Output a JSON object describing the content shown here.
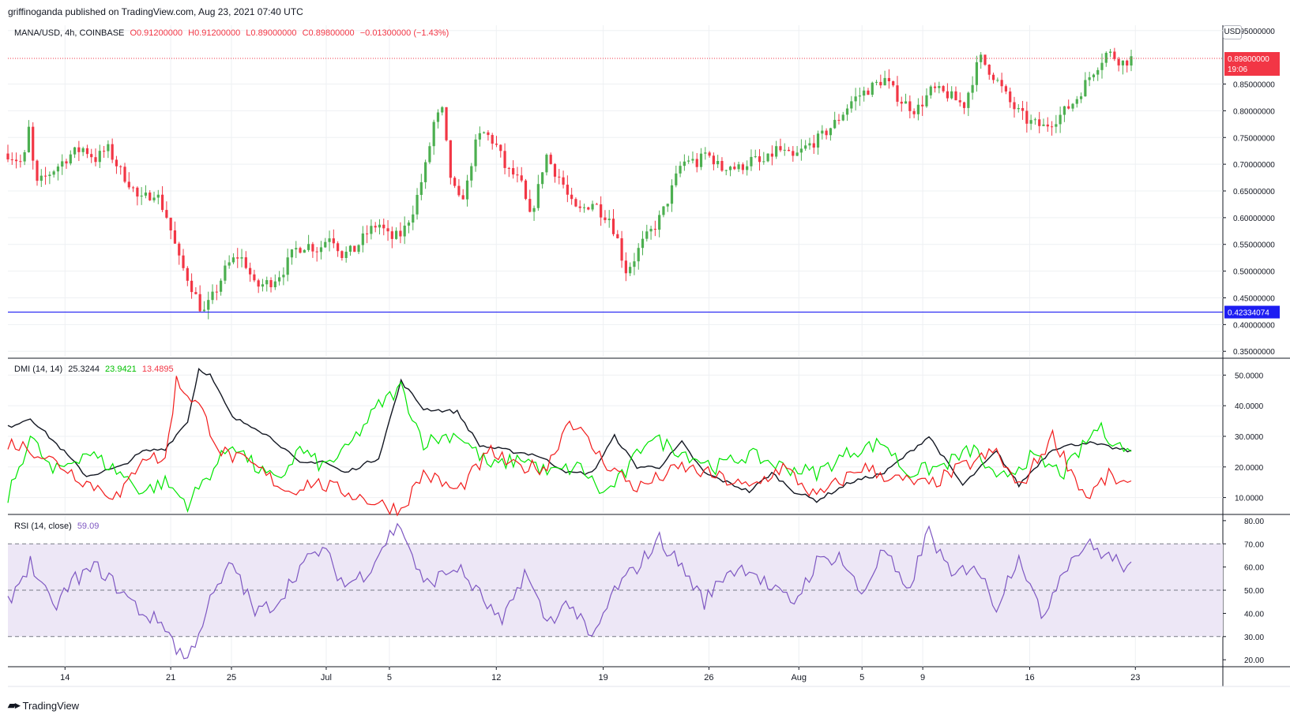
{
  "header": {
    "published": "griffinoganda published on TradingView.com, Aug 23, 2021 07:40 UTC"
  },
  "price_pane": {
    "symbol": "MANA/USD, 4h, COINBASE",
    "open": "O0.91200000",
    "high": "H0.91200000",
    "low": "L0.89000000",
    "close": "C0.89800000",
    "change": "−0.01300000 (−1.43%)",
    "currency_button": "USD",
    "last_price_label": "0.89800000",
    "countdown": "19:06",
    "support_label": "0.42334074",
    "support_value": 0.42334074,
    "last_price_value": 0.898
  },
  "dmi_pane": {
    "title": "DMI (14, 14)",
    "adx": "25.3244",
    "plus_di": "23.9421",
    "minus_di": "13.4895"
  },
  "rsi_pane": {
    "title": "RSI (14, close)",
    "value": "59.09"
  },
  "footer": {
    "brand": "TradingView"
  },
  "colors": {
    "up": "#26a69a",
    "down": "#ef5350",
    "up_candle": "#4caf50",
    "down_candle": "#f23645",
    "support_line": "#1d1df2",
    "adx": "#131722",
    "plus_di": "#00e600",
    "minus_di": "#f21b1b",
    "rsi": "#7e57c2",
    "rsi_band": "#ede7f6"
  },
  "chart_data": [
    {
      "type": "candlestick",
      "title": "MANA/USD, 4h, COINBASE",
      "x_ticks": [
        "14",
        "21",
        "25",
        "Jul",
        "5",
        "12",
        "19",
        "26",
        "Aug",
        "5",
        "9",
        "16",
        "23"
      ],
      "y_ticks": [
        "0.35000000",
        "0.40000000",
        "0.45000000",
        "0.50000000",
        "0.55000000",
        "0.60000000",
        "0.65000000",
        "0.70000000",
        "0.75000000",
        "0.80000000",
        "0.85000000",
        "0.95000000"
      ],
      "ylim": [
        0.34,
        0.96
      ],
      "close_path": [
        [
          0,
          0.72
        ],
        [
          0.02,
          0.7
        ],
        [
          0.025,
          0.78
        ],
        [
          0.035,
          0.66
        ],
        [
          0.05,
          0.68
        ],
        [
          0.065,
          0.7
        ],
        [
          0.08,
          0.72
        ],
        [
          0.095,
          0.73
        ],
        [
          0.11,
          0.71
        ],
        [
          0.125,
          0.73
        ],
        [
          0.14,
          0.69
        ],
        [
          0.155,
          0.66
        ],
        [
          0.165,
          0.63
        ],
        [
          0.185,
          0.65
        ],
        [
          0.2,
          0.6
        ],
        [
          0.215,
          0.52
        ],
        [
          0.228,
          0.48
        ],
        [
          0.245,
          0.42
        ],
        [
          0.26,
          0.46
        ],
        [
          0.275,
          0.51
        ],
        [
          0.29,
          0.53
        ],
        [
          0.3,
          0.51
        ],
        [
          0.31,
          0.47
        ],
        [
          0.33,
          0.48
        ],
        [
          0.345,
          0.5
        ],
        [
          0.36,
          0.54
        ],
        [
          0.375,
          0.55
        ],
        [
          0.39,
          0.54
        ],
        [
          0.405,
          0.57
        ],
        [
          0.42,
          0.53
        ],
        [
          0.435,
          0.54
        ],
        [
          0.45,
          0.57
        ],
        [
          0.465,
          0.59
        ],
        [
          0.48,
          0.56
        ],
        [
          0.495,
          0.57
        ],
        [
          0.51,
          0.62
        ],
        [
          0.525,
          0.7
        ],
        [
          0.535,
          0.78
        ],
        [
          0.545,
          0.8
        ],
        [
          0.555,
          0.68
        ],
        [
          0.565,
          0.63
        ],
        [
          0.575,
          0.65
        ],
        [
          0.585,
          0.73
        ],
        [
          0.595,
          0.76
        ],
        [
          0.605,
          0.75
        ],
        [
          0.615,
          0.73
        ],
        [
          0.625,
          0.69
        ],
        [
          0.635,
          0.68
        ],
        [
          0.645,
          0.66
        ],
        [
          0.655,
          0.6
        ],
        [
          0.665,
          0.65
        ],
        [
          0.675,
          0.72
        ],
        [
          0.685,
          0.69
        ],
        [
          0.695,
          0.67
        ],
        [
          0.705,
          0.63
        ],
        [
          0.715,
          0.61
        ],
        [
          0.725,
          0.62
        ],
        [
          0.735,
          0.63
        ],
        [
          0.745,
          0.61
        ],
        [
          0.755,
          0.6
        ],
        [
          0.765,
          0.56
        ],
        [
          0.775,
          0.5
        ],
        [
          0.785,
          0.52
        ],
        [
          0.795,
          0.55
        ],
        [
          0.805,
          0.57
        ],
        [
          0.815,
          0.59
        ],
        [
          0.825,
          0.62
        ],
        [
          0.835,
          0.66
        ],
        [
          0.845,
          0.7
        ],
        [
          0.855,
          0.71
        ],
        [
          0.865,
          0.7
        ],
        [
          0.875,
          0.72
        ],
        [
          0.885,
          0.71
        ],
        [
          0.895,
          0.69
        ],
        [
          0.905,
          0.7
        ],
        [
          0.915,
          0.69
        ],
        [
          0.925,
          0.7
        ],
        [
          0.935,
          0.71
        ],
        [
          0.945,
          0.7
        ],
        [
          0.955,
          0.71
        ],
        [
          0.965,
          0.73
        ],
        [
          0.975,
          0.72
        ],
        [
          0.985,
          0.71
        ]
      ]
    },
    {
      "type": "line",
      "title": "DMI (14, 14)",
      "y_ticks": [
        "10.0000",
        "20.0000",
        "30.0000",
        "40.0000",
        "50.0000"
      ],
      "ylim": [
        5,
        55
      ],
      "series": [
        {
          "name": "ADX",
          "value": "25.3244"
        },
        {
          "name": "+DI",
          "value": "23.9421"
        },
        {
          "name": "-DI",
          "value": "13.4895"
        }
      ]
    },
    {
      "type": "line",
      "title": "RSI (14, close)",
      "y_ticks": [
        "20.00",
        "30.00",
        "40.00",
        "50.00",
        "60.00",
        "70.00",
        "80.00"
      ],
      "ylim": [
        17,
        82
      ],
      "band": [
        30,
        70
      ],
      "value": "59.09"
    }
  ]
}
